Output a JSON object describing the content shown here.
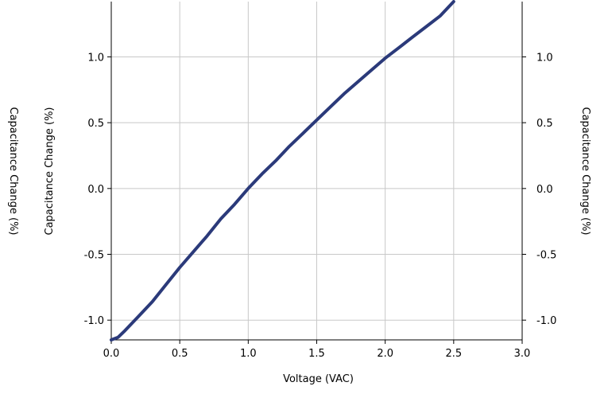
{
  "chart_data": {
    "type": "line",
    "title": "",
    "xlabel": "Voltage (VAC)",
    "ylabel_inner": "Capacitance Change (%)",
    "ylabel_outer_left": "Capacitance Change (%)",
    "ylabel_right": "Capacitance Change (%)",
    "xlim": [
      0.0,
      3.0
    ],
    "ylim": [
      -1.15,
      1.42
    ],
    "x_ticks": [
      0.0,
      0.5,
      1.0,
      1.5,
      2.0,
      2.5,
      3.0
    ],
    "x_tick_labels": [
      "0.0",
      "0.5",
      "1.0",
      "1.5",
      "2.0",
      "2.5",
      "3.0"
    ],
    "y_ticks": [
      -1.0,
      -0.5,
      0.0,
      0.5,
      1.0
    ],
    "y_tick_labels": [
      "-1.0",
      "-0.5",
      "0.0",
      "0.5",
      "1.0"
    ],
    "grid": true,
    "line_color": "#2b3a7a",
    "series": [
      {
        "x": [
          0.0,
          0.05,
          0.1,
          0.2,
          0.3,
          0.4,
          0.5,
          0.6,
          0.7,
          0.8,
          0.9,
          1.0,
          1.1,
          1.2,
          1.3,
          1.4,
          1.5,
          1.6,
          1.7,
          1.8,
          1.9,
          2.0,
          2.1,
          2.2,
          2.3,
          2.4,
          2.5
        ],
        "y": [
          -1.15,
          -1.13,
          -1.08,
          -0.97,
          -0.86,
          -0.73,
          -0.6,
          -0.48,
          -0.36,
          -0.23,
          -0.12,
          0.0,
          0.11,
          0.21,
          0.32,
          0.42,
          0.52,
          0.62,
          0.72,
          0.81,
          0.9,
          0.99,
          1.07,
          1.15,
          1.23,
          1.31,
          1.42
        ]
      }
    ]
  }
}
